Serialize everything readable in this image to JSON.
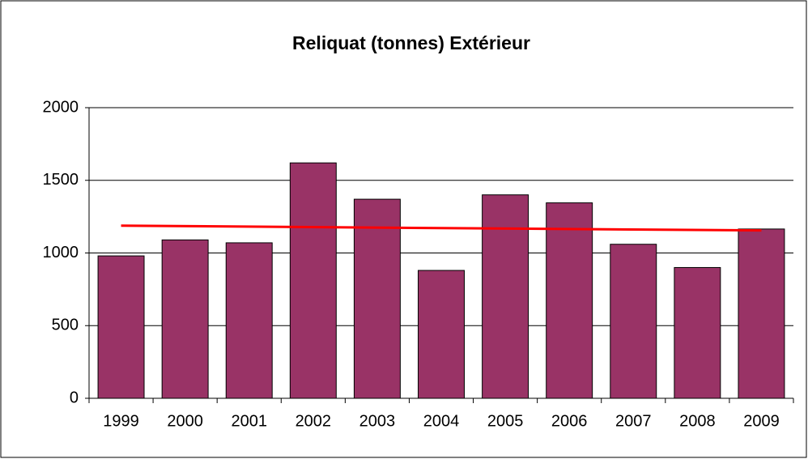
{
  "chart_data": {
    "type": "bar",
    "title": "Reliquat (tonnes) Extérieur",
    "categories": [
      "1999",
      "2000",
      "2001",
      "2002",
      "2003",
      "2004",
      "2005",
      "2006",
      "2007",
      "2008",
      "2009"
    ],
    "values": [
      980,
      1090,
      1070,
      1620,
      1370,
      880,
      1400,
      1345,
      1060,
      900,
      1165
    ],
    "color": "#993366",
    "trendline": {
      "color": "#ff0000",
      "values": [
        1188,
        1155
      ]
    },
    "ylim": [
      0,
      2000
    ],
    "yticks": [
      0,
      500,
      1000,
      1500,
      2000
    ],
    "grid": true
  }
}
